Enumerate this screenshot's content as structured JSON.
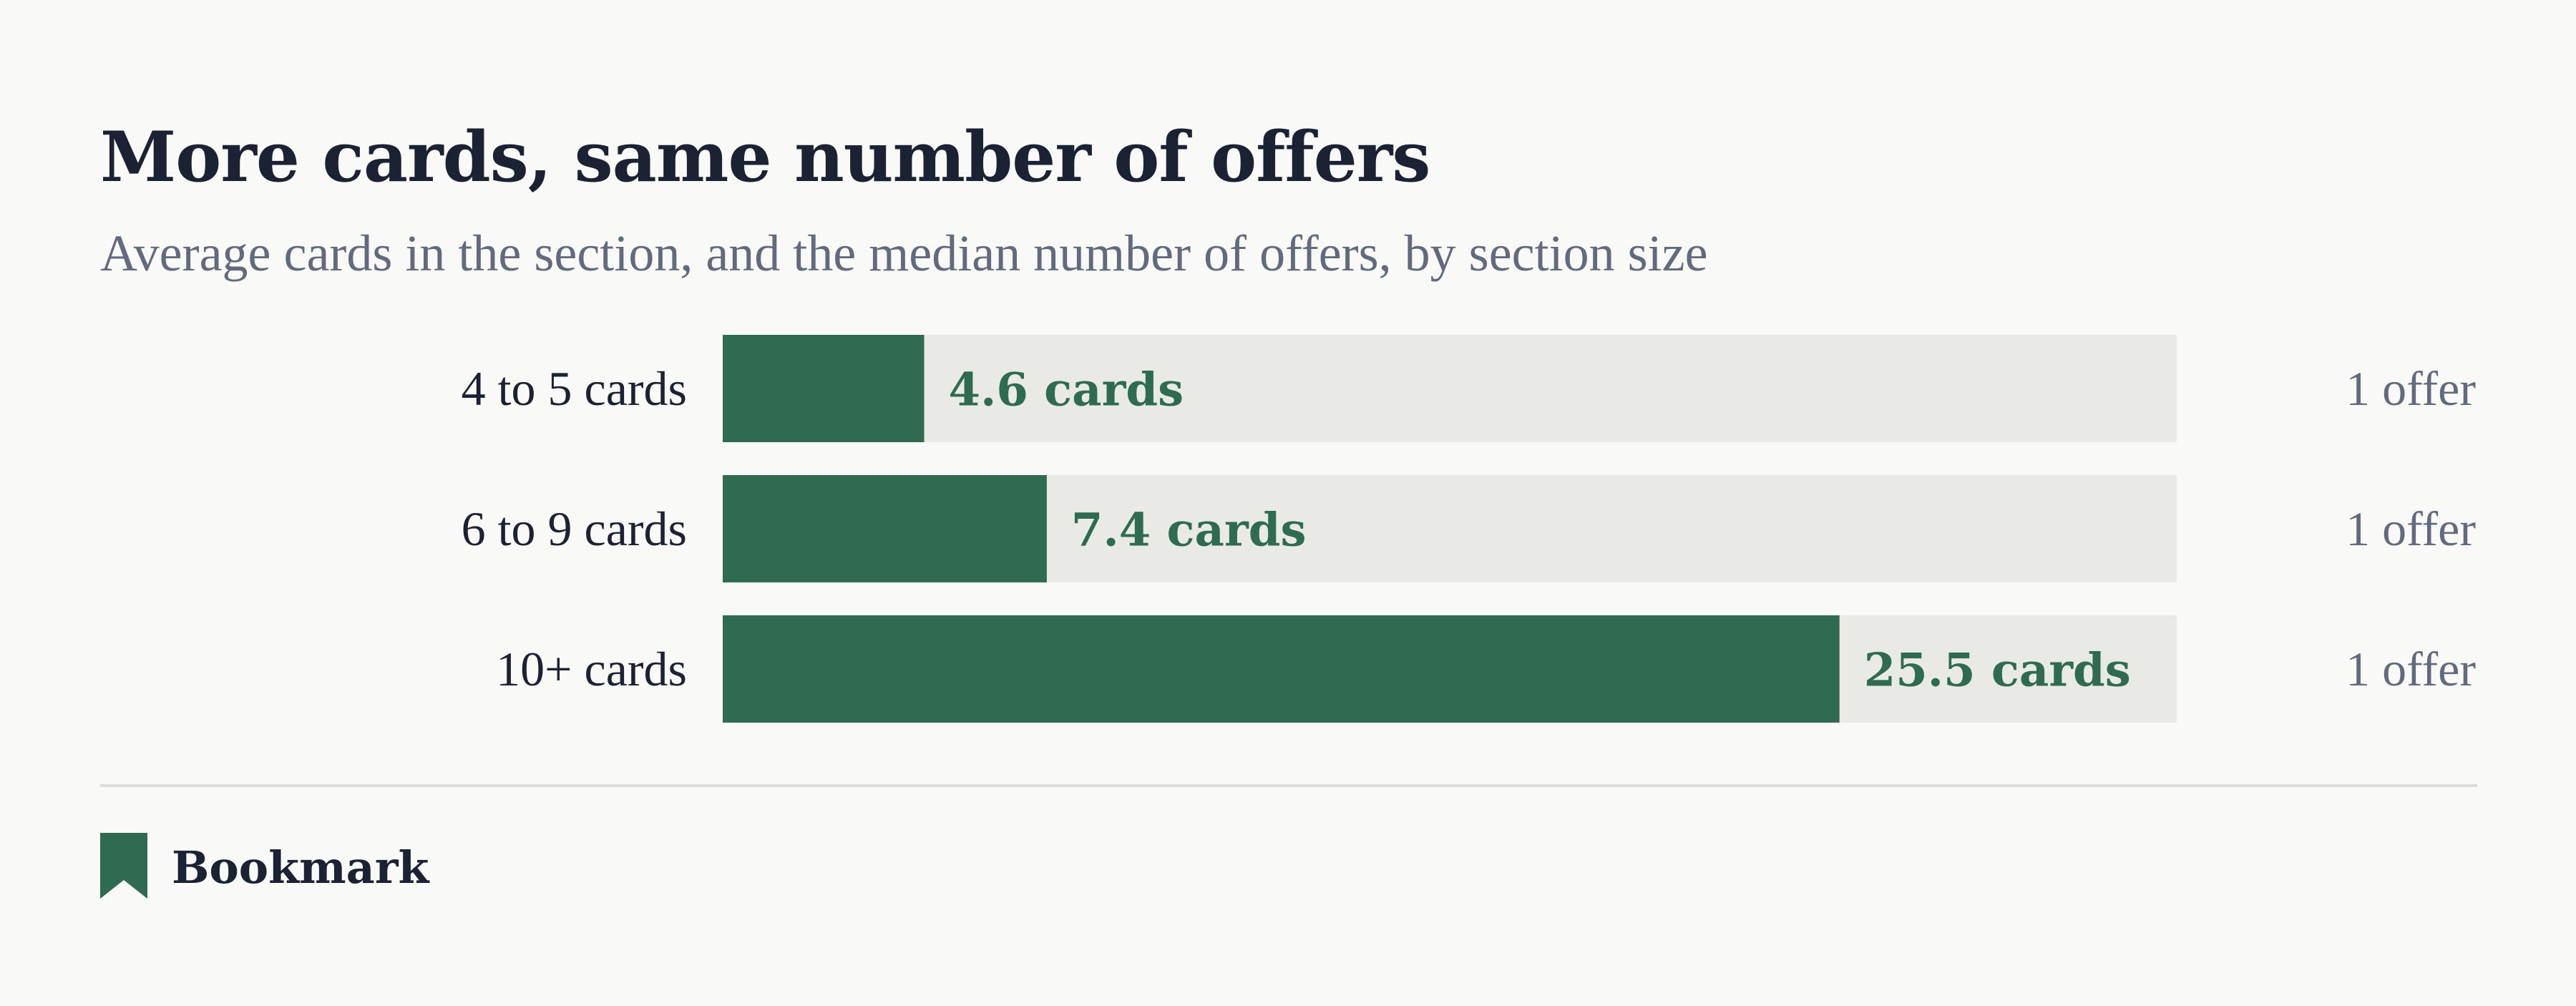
{
  "header": {
    "title": "More cards, same number of offers",
    "subtitle": "Average cards in the section, and the median number of offers, by section size"
  },
  "footer": {
    "brand": "Bookmark",
    "brand_icon": "bookmark-icon"
  },
  "colors": {
    "bar": "#2e6b50",
    "track": "#e9eae5",
    "value_label": "#2e6b50",
    "category_label": "#1b2233",
    "offer_label": "#626b7e"
  },
  "chart_data": {
    "type": "bar",
    "orientation": "horizontal",
    "categories": [
      "4 to 5 cards",
      "6 to 9 cards",
      "10+ cards"
    ],
    "values": [
      4.6,
      7.4,
      25.5
    ],
    "value_labels": [
      "4.6 cards",
      "7.4 cards",
      "25.5 cards"
    ],
    "offer_labels": [
      "1 offer",
      "1 offer",
      "1 offer"
    ],
    "xlim": [
      0,
      33.2
    ],
    "grid": false,
    "legend": "none"
  }
}
